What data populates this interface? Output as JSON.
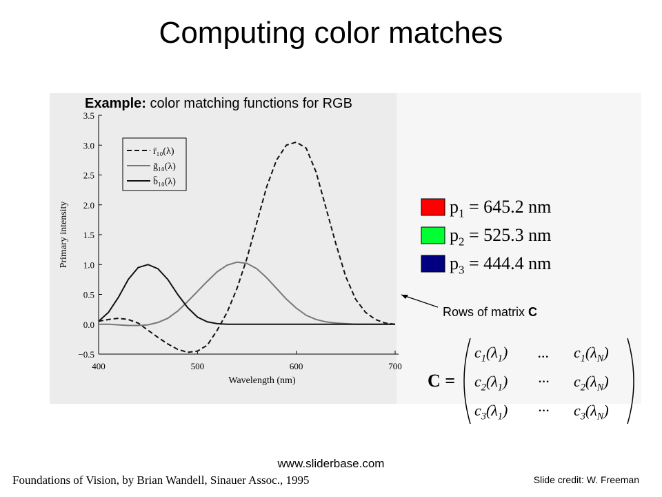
{
  "title": "Computing color matches",
  "chart_data": {
    "type": "line",
    "title_bold": "Example:",
    "title": "color matching functions for RGB",
    "x_label": "Wavelength (nm)",
    "y_label": "Primary intensity",
    "x": [
      400,
      410,
      420,
      430,
      440,
      450,
      460,
      470,
      480,
      490,
      500,
      510,
      520,
      530,
      540,
      550,
      560,
      570,
      580,
      590,
      600,
      610,
      620,
      630,
      640,
      650,
      660,
      670,
      680,
      690,
      700
    ],
    "series": [
      {
        "name": "r̄₁₀(λ)",
        "color": "#111111",
        "style": "dashed",
        "values": [
          0.05,
          0.08,
          0.1,
          0.08,
          0.02,
          -0.1,
          -0.22,
          -0.33,
          -0.42,
          -0.47,
          -0.45,
          -0.35,
          -0.1,
          0.2,
          0.6,
          1.1,
          1.7,
          2.3,
          2.75,
          3.0,
          3.05,
          2.95,
          2.55,
          1.95,
          1.35,
          0.8,
          0.42,
          0.2,
          0.08,
          0.02,
          0.0
        ]
      },
      {
        "name": "ḡ₁₀(λ)",
        "color": "#777777",
        "style": "solid",
        "values": [
          0.0,
          0.0,
          -0.01,
          -0.02,
          -0.02,
          -0.01,
          0.03,
          0.1,
          0.22,
          0.38,
          0.55,
          0.72,
          0.88,
          0.99,
          1.04,
          1.02,
          0.93,
          0.78,
          0.6,
          0.42,
          0.27,
          0.15,
          0.08,
          0.04,
          0.02,
          0.01,
          0.0,
          0.0,
          0.0,
          0.0,
          0.0
        ]
      },
      {
        "name": "b̄₁₀(λ)",
        "color": "#111111",
        "style": "solid",
        "values": [
          0.05,
          0.2,
          0.45,
          0.75,
          0.95,
          1.0,
          0.93,
          0.75,
          0.5,
          0.28,
          0.12,
          0.04,
          0.01,
          0.0,
          0.0,
          0.0,
          0.0,
          0.0,
          0.0,
          0.0,
          0.0,
          0.0,
          0.0,
          0.0,
          0.0,
          0.0,
          0.0,
          0.0,
          0.0,
          0.0,
          0.0
        ]
      }
    ],
    "xlim": [
      400,
      700
    ],
    "xticks": [
      400,
      500,
      600,
      700
    ],
    "ylim": [
      -0.5,
      3.5
    ],
    "yticks": [
      {
        "value": -0.5,
        "label": "−0.5"
      },
      {
        "value": 0,
        "label": "0.0"
      },
      0.5,
      {
        "value": 1,
        "label": "1.0"
      },
      1.5,
      {
        "value": 2,
        "label": "2.0"
      },
      2.5,
      {
        "value": 3,
        "label": "3.0"
      },
      3.5
    ]
  },
  "primaries": [
    {
      "color": "#ff0000",
      "parts": [
        "p",
        "1",
        " = 645.2 nm"
      ]
    },
    {
      "color": "#00ff33",
      "parts": [
        "p",
        "2",
        " = 525.3 nm"
      ]
    },
    {
      "color": "#000080",
      "parts": [
        "p",
        "3",
        " = 444.4 nm"
      ]
    }
  ],
  "annotation": [
    "Rows of matrix",
    "C"
  ],
  "matrix": {
    "lhs": "C =",
    "rows": [
      [
        [
          "c",
          "1",
          "(λ",
          "1",
          ")"
        ],
        [
          "..."
        ],
        [
          "c",
          "1",
          "(λ",
          "N",
          ")"
        ]
      ],
      [
        [
          "c",
          "2",
          "(λ",
          "1",
          ")"
        ],
        [
          "···"
        ],
        [
          "c",
          "2",
          "(λ",
          "N",
          ")"
        ]
      ],
      [
        [
          "c",
          "3",
          "(λ",
          "1",
          ")"
        ],
        [
          "···"
        ],
        [
          "c",
          "3",
          "(λ",
          "N",
          ")"
        ]
      ]
    ]
  },
  "footer": {
    "url": "www.sliderbase.com",
    "source": "Foundations of Vision, by Brian Wandell, Sinauer Assoc., 1995",
    "credit": "Slide credit: W. Freeman"
  }
}
